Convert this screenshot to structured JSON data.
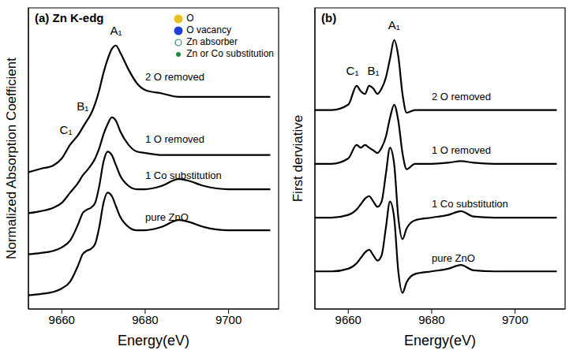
{
  "chart_data": [
    {
      "type": "line",
      "title": "(a) Zn K-edg",
      "x_label": "Energy(eV)",
      "y_label": "Normalized Absorption Coefficient",
      "x": [
        9652,
        9655,
        9658,
        9660,
        9662,
        9664,
        9665,
        9666,
        9667,
        9668,
        9669,
        9670,
        9671,
        9672,
        9673,
        9674,
        9676,
        9678,
        9680,
        9684,
        9688,
        9690,
        9694,
        9700,
        9705,
        9710
      ],
      "series": [
        {
          "name": "pure ZnO",
          "color": "#000000",
          "values": [
            0.0,
            0.02,
            0.05,
            0.1,
            0.2,
            0.45,
            0.6,
            0.65,
            0.68,
            0.75,
            1.0,
            1.35,
            1.5,
            1.45,
            1.3,
            1.15,
            1.0,
            0.95,
            0.95,
            1.0,
            1.1,
            1.08,
            1.0,
            0.95,
            0.95,
            0.95
          ]
        },
        {
          "name": "1 Co substitution",
          "color": "#000000",
          "values": [
            0.6,
            0.62,
            0.65,
            0.7,
            0.8,
            1.05,
            1.2,
            1.25,
            1.28,
            1.35,
            1.6,
            1.95,
            2.1,
            2.05,
            1.9,
            1.75,
            1.6,
            1.55,
            1.55,
            1.6,
            1.7,
            1.68,
            1.6,
            1.55,
            1.55,
            1.55
          ]
        },
        {
          "name": "1 O removed",
          "color": "#000000",
          "values": [
            1.2,
            1.23,
            1.28,
            1.35,
            1.5,
            1.65,
            1.75,
            1.82,
            1.9,
            2.0,
            2.15,
            2.35,
            2.5,
            2.6,
            2.55,
            2.4,
            2.2,
            2.1,
            2.08,
            2.05,
            2.05,
            2.05,
            2.05,
            2.05,
            2.05,
            2.05
          ]
        },
        {
          "name": "2 O removed",
          "color": "#000000",
          "values": [
            1.8,
            1.85,
            1.9,
            2.0,
            2.2,
            2.35,
            2.45,
            2.55,
            2.65,
            2.8,
            3.0,
            3.25,
            3.45,
            3.6,
            3.65,
            3.55,
            3.3,
            3.1,
            3.0,
            2.95,
            2.9,
            2.9,
            2.9,
            2.9,
            2.9,
            2.9
          ]
        }
      ],
      "xlim": [
        9652,
        9712
      ],
      "xticks": [
        9660,
        9680,
        9700
      ],
      "ylim": [
        -0.2,
        4.2
      ],
      "tick_labels": "x",
      "annotations": [
        {
          "text": "C₁",
          "x": 9661
        },
        {
          "text": "B₁",
          "x": 9665
        },
        {
          "text": "A₁",
          "x": 9673
        }
      ],
      "inset_key": [
        {
          "text": "O",
          "color": "#e8c020",
          "marker": "circle"
        },
        {
          "text": "O vacancy",
          "color": "#1f3fd6",
          "marker": "circle"
        },
        {
          "text": "Zn absorber",
          "color": "#3a8a6a",
          "marker": "open_circle"
        },
        {
          "text": "Zn or Co substitution",
          "color": "#1a8a3a",
          "marker": "dot"
        }
      ]
    },
    {
      "type": "line",
      "title": "(b)",
      "x_label": "Energy(eV)",
      "y_label": "First derviative",
      "x": [
        9652,
        9656,
        9660,
        9662,
        9663,
        9664,
        9665,
        9666,
        9667,
        9668,
        9669,
        9670,
        9671,
        9672,
        9673,
        9674,
        9676,
        9680,
        9684,
        9687,
        9690,
        9695,
        9700,
        9710
      ],
      "series": [
        {
          "name": "pure ZnO",
          "color": "#000000",
          "values": [
            0,
            0,
            0.05,
            0.15,
            0.25,
            0.35,
            0.4,
            0.3,
            0.2,
            0.3,
            0.8,
            1.3,
            1.0,
            0.0,
            -0.4,
            -0.2,
            -0.05,
            0,
            0.05,
            0.12,
            0.02,
            0,
            0,
            0
          ]
        },
        {
          "name": "1 Co substitution",
          "color": "#000000",
          "values": [
            1,
            1,
            1.05,
            1.15,
            1.25,
            1.35,
            1.4,
            1.3,
            1.2,
            1.3,
            1.8,
            2.3,
            2.0,
            1.0,
            0.6,
            0.8,
            0.95,
            1,
            1.05,
            1.12,
            1.02,
            1,
            1,
            1
          ]
        },
        {
          "name": "1 O removed",
          "color": "#000000",
          "values": [
            2,
            2,
            2.1,
            2.35,
            2.3,
            2.35,
            2.3,
            2.25,
            2.2,
            2.3,
            2.5,
            2.85,
            3.1,
            2.8,
            2.2,
            1.9,
            2.0,
            2.0,
            2.02,
            2.05,
            2.02,
            2,
            2,
            2
          ]
        },
        {
          "name": "2 O removed",
          "color": "#000000",
          "values": [
            3,
            3,
            3.1,
            3.45,
            3.35,
            3.3,
            3.45,
            3.4,
            3.3,
            3.4,
            3.6,
            3.95,
            4.3,
            4.0,
            3.3,
            2.95,
            3.0,
            3.0,
            3.0,
            3.0,
            3.0,
            3,
            3,
            3
          ]
        }
      ],
      "xlim": [
        9652,
        9712
      ],
      "xticks": [
        9660,
        9680,
        9700
      ],
      "ylim": [
        -0.7,
        4.9
      ],
      "tick_labels": "x",
      "annotations": [
        {
          "text": "C₁",
          "x": 9661
        },
        {
          "text": "B₁",
          "x": 9666
        },
        {
          "text": "A₁",
          "x": 9671
        }
      ]
    }
  ]
}
